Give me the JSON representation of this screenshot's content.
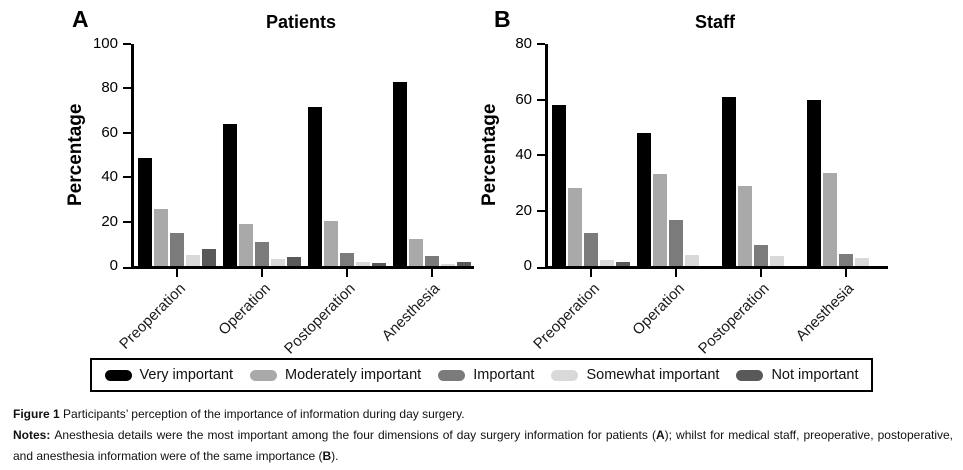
{
  "chart_data": [
    {
      "type": "bar",
      "panel_label": "A",
      "title": "Patients",
      "ylabel": "Percentage",
      "xlabel": "",
      "ylim": [
        0,
        100
      ],
      "yticks": [
        0,
        20,
        40,
        60,
        80,
        100
      ],
      "grid": false,
      "legend_position": "bottom-shared",
      "categories": [
        "Preoperation",
        "Operation",
        "Postoperation",
        "Anesthesia"
      ],
      "series": [
        {
          "name": "Very important",
          "color": "#000000",
          "values": [
            48.5,
            64,
            71.5,
            83
          ]
        },
        {
          "name": "Moderately important",
          "color": "#a9a9a9",
          "values": [
            25.5,
            19,
            20.5,
            12
          ]
        },
        {
          "name": "Important",
          "color": "#7b7b7b",
          "values": [
            15,
            11,
            6,
            4.5
          ]
        },
        {
          "name": "Somewhat important",
          "color": "#d9d9d9",
          "values": [
            5,
            3,
            2,
            1
          ]
        },
        {
          "name": "Not important",
          "color": "#595959",
          "values": [
            7.5,
            4,
            1.5,
            2
          ]
        }
      ]
    },
    {
      "type": "bar",
      "panel_label": "B",
      "title": "Staff",
      "ylabel": "Percentage",
      "xlabel": "",
      "ylim": [
        0,
        80
      ],
      "yticks": [
        0,
        20,
        40,
        60,
        80
      ],
      "grid": false,
      "legend_position": "bottom-shared",
      "categories": [
        "Preoperation",
        "Operation",
        "Postoperation",
        "Anesthesia"
      ],
      "series": [
        {
          "name": "Very important",
          "color": "#000000",
          "values": [
            58,
            48,
            61,
            60
          ]
        },
        {
          "name": "Moderately important",
          "color": "#a9a9a9",
          "values": [
            28,
            33,
            29,
            33.5
          ]
        },
        {
          "name": "Important",
          "color": "#7b7b7b",
          "values": [
            12,
            16.5,
            7.5,
            4.5
          ]
        },
        {
          "name": "Somewhat important",
          "color": "#d9d9d9",
          "values": [
            2,
            4,
            3.5,
            3
          ]
        },
        {
          "name": "Not important",
          "color": "#595959",
          "values": [
            1.5,
            0,
            0,
            0
          ]
        }
      ]
    }
  ],
  "legend": {
    "items": [
      {
        "label": "Very important",
        "color": "#000000"
      },
      {
        "label": "Moderately important",
        "color": "#a9a9a9"
      },
      {
        "label": "Important",
        "color": "#7b7b7b"
      },
      {
        "label": "Somewhat important",
        "color": "#d9d9d9"
      },
      {
        "label": "Not important",
        "color": "#595959"
      }
    ]
  },
  "caption": {
    "figure_label": "Figure 1 ",
    "figure_text": "Participants’ perception of the importance of information during day surgery.",
    "notes_label": "Notes: ",
    "notes_text_1": "Anesthesia details were the most important among the four dimensions of day surgery information for patients (",
    "panel_a_ref": "A",
    "notes_text_2": "); whilst for medical staff, preoperative, postoperative, and anesthesia information were of the same importance (",
    "panel_b_ref": "B",
    "notes_text_3": ")."
  }
}
